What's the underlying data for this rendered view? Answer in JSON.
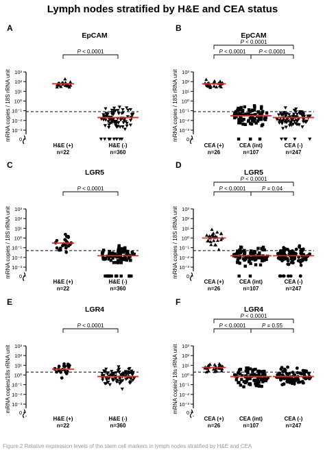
{
  "figure": {
    "title": "Lymph nodes stratified by H&E and CEA status",
    "caption_fragment": "Figure 2 Relative expression levels of the stem cell markers in lymph nodes stratified by H&E and CEA"
  },
  "axis_ticks": [
    "10³",
    "10²",
    "10¹",
    "10⁰",
    "10⁻¹",
    "10⁻²",
    "10⁻³",
    "0"
  ],
  "chart_data": [
    {
      "panel": "A",
      "type": "scatter",
      "title": "EpCAM",
      "ylabel": "mRNA copies / 18S rRNA unit",
      "yscale": "log",
      "ylim": [
        0.001,
        1000
      ],
      "categories": [
        "H&E (+)",
        "H&E (-)"
      ],
      "counts": [
        "n=22",
        "n=360"
      ],
      "markers": [
        "triangle",
        "triangle-down"
      ],
      "medians": [
        60,
        0.02
      ],
      "threshold": 0.08,
      "significance": [
        {
          "from": 0,
          "to": 1,
          "label": "P < 0.0001",
          "level": 0
        }
      ]
    },
    {
      "panel": "B",
      "type": "scatter",
      "title": "EpCAM",
      "ylabel": "mRNA copies / 18S rRNA unit",
      "yscale": "log",
      "ylim": [
        0.001,
        1000
      ],
      "categories": [
        "CEA (+)",
        "CEA (int)",
        "CEA (-)"
      ],
      "counts": [
        "n=26",
        "n=107",
        "n=247"
      ],
      "markers": [
        "triangle",
        "square",
        "triangle-down"
      ],
      "medians": [
        60,
        0.03,
        0.02
      ],
      "threshold": 0.08,
      "significance": [
        {
          "from": 0,
          "to": 2,
          "label": "P < 0.0001",
          "level": 1
        },
        {
          "from": 0,
          "to": 1,
          "label": "P < 0.0001",
          "level": 0
        },
        {
          "from": 1,
          "to": 2,
          "label": "P < 0.0001",
          "level": 0
        }
      ]
    },
    {
      "panel": "C",
      "type": "scatter",
      "title": "LGR5",
      "ylabel": "mRNA copies / 18S rRNA unit",
      "yscale": "log",
      "ylim": [
        0.001,
        1000
      ],
      "categories": [
        "H&E (+)",
        "H&E (-)"
      ],
      "counts": [
        "n=22",
        "n=360"
      ],
      "markers": [
        "circle",
        "square"
      ],
      "medians": [
        0.3,
        0.015
      ],
      "threshold": 0.05,
      "significance": [
        {
          "from": 0,
          "to": 1,
          "label": "P < 0.0001",
          "level": 0
        }
      ]
    },
    {
      "panel": "D",
      "type": "scatter",
      "title": "LGR5",
      "ylabel": "mRNA copies / 18S rRNA unit",
      "yscale": "log",
      "ylim": [
        0.001,
        1000
      ],
      "categories": [
        "CEA (+)",
        "CEA (int)",
        "CEA (-)"
      ],
      "counts": [
        "n=26",
        "n=107",
        "n=247"
      ],
      "markers": [
        "triangle",
        "square",
        "circle"
      ],
      "medians": [
        1,
        0.015,
        0.015
      ],
      "threshold": 0.05,
      "significance": [
        {
          "from": 0,
          "to": 2,
          "label": "P < 0.0001",
          "level": 1
        },
        {
          "from": 0,
          "to": 1,
          "label": "P < 0.0001",
          "level": 0
        },
        {
          "from": 1,
          "to": 2,
          "label": "P = 0.04",
          "level": 0
        }
      ]
    },
    {
      "panel": "E",
      "type": "scatter",
      "title": "LGR4",
      "ylabel": "mRNA copies/18s rRNA unit",
      "yscale": "log",
      "ylim": [
        0.001,
        1000
      ],
      "categories": [
        "H&E (+)",
        "H&E (-)"
      ],
      "counts": [
        "n=22",
        "n=360"
      ],
      "markers": [
        "circle",
        "triangle-down"
      ],
      "medians": [
        4,
        0.7
      ],
      "threshold": 2,
      "significance": [
        {
          "from": 0,
          "to": 1,
          "label": "P < 0.0001",
          "level": 0
        }
      ]
    },
    {
      "panel": "F",
      "type": "scatter",
      "title": "LGR4",
      "ylabel": "mRNA copies/ 18s rRNA unit",
      "yscale": "log",
      "ylim": [
        0.001,
        1000
      ],
      "categories": [
        "CEA (+)",
        "CEA (int)",
        "CEA (-)"
      ],
      "counts": [
        "n=26",
        "n=107",
        "n=247"
      ],
      "markers": [
        "triangle",
        "square",
        "circle"
      ],
      "medians": [
        6,
        0.7,
        0.7
      ],
      "threshold": 2,
      "significance": [
        {
          "from": 0,
          "to": 2,
          "label": "P < 0.0001",
          "level": 1
        },
        {
          "from": 0,
          "to": 1,
          "label": "P < 0.0001",
          "level": 0
        },
        {
          "from": 1,
          "to": 2,
          "label": "P = 0.55",
          "level": 0
        }
      ]
    }
  ],
  "colors": {
    "median": "#e8291c",
    "points": "#000000",
    "threshold": "#000000"
  }
}
